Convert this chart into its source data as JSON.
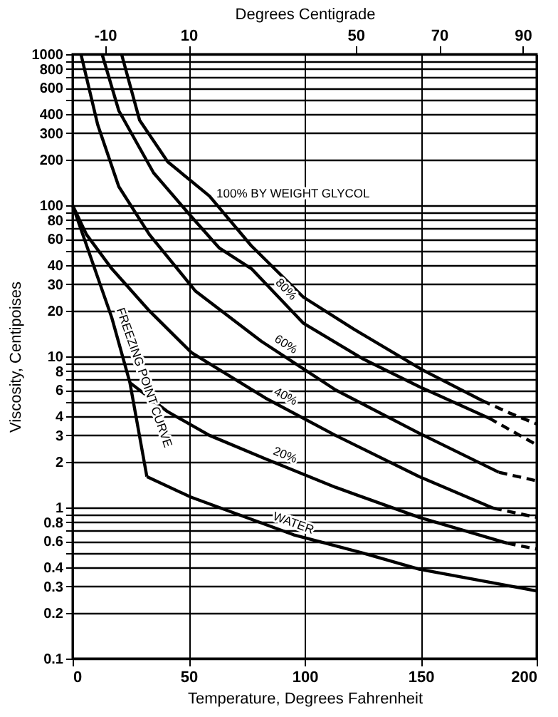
{
  "chart_data": {
    "type": "line",
    "xlabel": "Temperature, Degrees Fahrenheit",
    "ylabel": "Viscosity, Centipoises",
    "x2label": "Degrees Centigrade",
    "xlim": [
      0,
      200
    ],
    "xticks": [
      0,
      50,
      100,
      150,
      200
    ],
    "x2lim": [
      -17.78,
      93.33
    ],
    "x2ticks": [
      -10,
      10,
      50,
      70,
      90
    ],
    "ylim": [
      0.1,
      1000
    ],
    "log": true,
    "grid": true,
    "legend": false,
    "marker": "none",
    "yticks": [
      1000,
      {
        "value": 900,
        "label": null
      },
      800,
      {
        "value": 700,
        "label": null
      },
      600,
      {
        "value": 500,
        "label": null
      },
      400,
      300,
      200,
      100,
      {
        "value": 90,
        "label": null
      },
      80,
      {
        "value": 70,
        "label": null
      },
      60,
      {
        "value": 50,
        "label": null
      },
      40,
      30,
      20,
      10,
      {
        "value": 9,
        "label": null
      },
      8,
      {
        "value": 7,
        "label": null
      },
      6,
      {
        "value": 5,
        "label": null
      },
      4,
      3,
      2,
      1,
      {
        "value": 0.9,
        "label": null
      },
      {
        "value": 0.8,
        "label": "0.8"
      },
      {
        "value": 0.7,
        "label": null
      },
      {
        "value": 0.6,
        "label": "0.6"
      },
      {
        "value": 0.5,
        "label": null
      },
      {
        "value": 0.4,
        "label": "0.4"
      },
      {
        "value": 0.3,
        "label": "0.3"
      },
      {
        "value": 0.2,
        "label": "0.2"
      },
      {
        "value": 0.1,
        "label": "0.1"
      }
    ],
    "series": [
      {
        "name": "100% BY WEIGHT GLYCOL",
        "color": "#000000",
        "line_style": "solid",
        "x": [
          21.1,
          28.9,
          41,
          59,
          77,
          99.4,
          121,
          151,
          176.5
        ],
        "values": [
          1000,
          365,
          194,
          115,
          54,
          24.7,
          15.2,
          8.1,
          5.1
        ]
      },
      {
        "color": "#000000",
        "line_style": "dashed",
        "x": [
          176.5,
          188.6,
          200
        ],
        "values": [
          5.1,
          4.2,
          3.57
        ]
      },
      {
        "name": "80%",
        "color": "#000000",
        "line_style": "solid",
        "x": [
          12.7,
          19.9,
          34.9,
          51.2,
          63.3,
          77.1,
          99.4,
          125.3,
          149.4,
          179.5
        ],
        "values": [
          1000,
          423,
          164,
          84,
          52,
          38,
          16.6,
          9.6,
          6.3,
          3.9
        ]
      },
      {
        "color": "#000000",
        "line_style": "dashed",
        "x": [
          179.5,
          200
        ],
        "values": [
          3.9,
          2.6
        ]
      },
      {
        "name": "60%",
        "color": "#000000",
        "line_style": "solid",
        "x": [
          3.6,
          10.8,
          19.9,
          33.1,
          53,
          81.3,
          113.3,
          149.4,
          183.7
        ],
        "values": [
          1000,
          342,
          133,
          64,
          27,
          12.6,
          6.0,
          3.1,
          1.71
        ]
      },
      {
        "color": "#000000",
        "line_style": "dashed",
        "x": [
          183.7,
          200
        ],
        "values": [
          1.71,
          1.5
        ]
      },
      {
        "name": "40%",
        "color": "#000000",
        "line_style": "solid",
        "x": [
          0,
          6,
          16.9,
          33.1,
          51.2,
          83.1,
          113.3,
          149.4,
          181.3
        ],
        "values": [
          100,
          64,
          38,
          20,
          10.6,
          5.3,
          3.0,
          1.6,
          0.99
        ]
      },
      {
        "color": "#000000",
        "line_style": "dashed",
        "x": [
          181.3,
          200
        ],
        "values": [
          0.99,
          0.86
        ]
      },
      {
        "name": "20%",
        "color": "#000000",
        "line_style": "solid",
        "x": [
          24.7,
          41,
          59,
          83.1,
          113.3,
          149.4,
          187.3
        ],
        "values": [
          6.7,
          4.3,
          3.0,
          2.1,
          1.36,
          0.86,
          0.58
        ]
      },
      {
        "color": "#000000",
        "line_style": "dashed",
        "x": [
          187.3,
          200
        ],
        "values": [
          0.58,
          0.53
        ]
      },
      {
        "name": "WATER",
        "color": "#000000",
        "line_style": "solid",
        "x": [
          32,
          51,
          95.2,
          125,
          149.4,
          200
        ],
        "values": [
          1.6,
          1.17,
          0.66,
          0.5,
          0.39,
          0.28
        ]
      },
      {
        "name": "FREEZING POINT CURVE",
        "color": "#000000",
        "line_style": "solid",
        "x": [
          0,
          16.9,
          24.7,
          32
        ],
        "values": [
          100,
          18,
          6.7,
          1.6
        ]
      }
    ]
  }
}
